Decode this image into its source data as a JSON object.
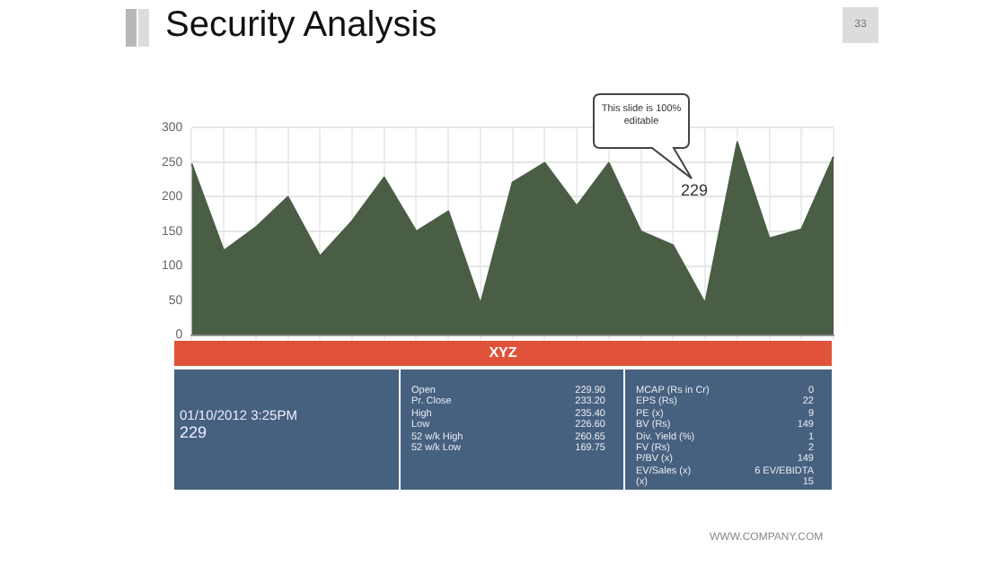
{
  "chart_data": [
    {
      "type": "area",
      "title": "Security Analysis",
      "categories": [
        null,
        null,
        null,
        null,
        null,
        null,
        null,
        null,
        null,
        null,
        null,
        null,
        null,
        null,
        null,
        null,
        null,
        null,
        null,
        null,
        null
      ],
      "values": [
        248,
        122,
        156,
        200,
        114,
        165,
        228,
        150,
        179,
        45,
        221,
        249,
        187,
        249,
        150,
        130,
        46,
        279,
        140,
        153,
        258
      ],
      "color": "#4a5e45",
      "ylim": [
        0,
        300
      ],
      "yticks": [
        0,
        50,
        100,
        150,
        200,
        250,
        300
      ],
      "grid": true,
      "annotations": [
        "This slide is 100% editable",
        "229",
        "33",
        "WWW.COMPANY.COM"
      ]
    },
    {
      "type": "other",
      "title": "XYZ",
      "annotations": [
        "01/10/2012  3:25PM",
        "229"
      ]
    },
    {
      "type": "other",
      "annotations": [
        "Open",
        "229.90",
        "Pr. Close",
        "233.20",
        "High",
        "235.40",
        "Low",
        "226.60",
        "52 w/k High",
        "260.65",
        "52 w/k Low",
        "169.75"
      ]
    },
    {
      "type": "other",
      "annotations": [
        "MCAP (Rs in Cr)",
        "0",
        "EPS (Rs)",
        "22",
        "PE (x)",
        "9",
        "BV (Rs)",
        "149",
        "Div. Yield (%)",
        "1",
        "FV (Rs)",
        "2",
        "P/BV (x)",
        "149",
        "EV/Sales (x)",
        "6 EV/EBIDTA",
        "(x)",
        "15"
      ]
    }
  ]
}
